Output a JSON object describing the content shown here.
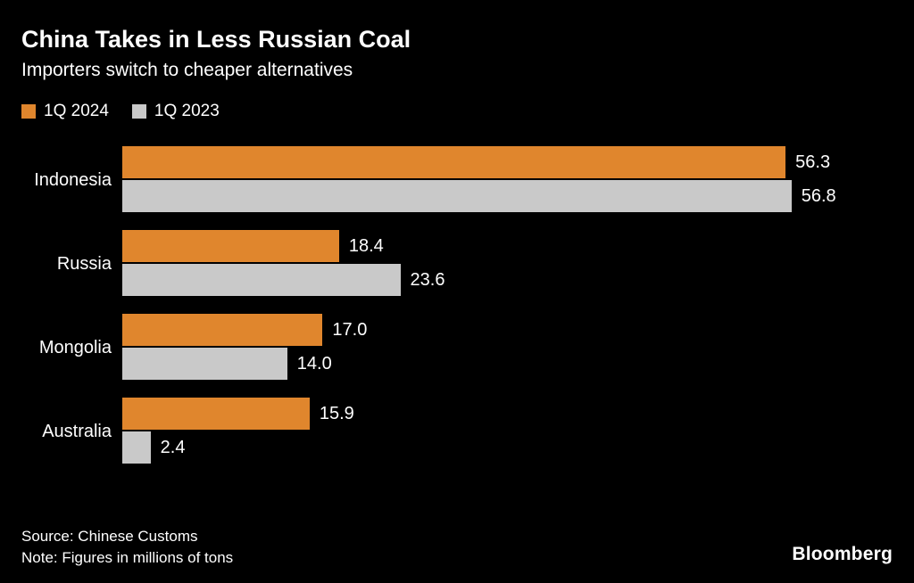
{
  "header": {
    "title": "China Takes in Less Russian Coal",
    "subtitle": "Importers switch to cheaper alternatives"
  },
  "legend": {
    "items": [
      {
        "label": "1Q 2024",
        "color": "#E0862D"
      },
      {
        "label": "1Q 2023",
        "color": "#C9C9C9"
      }
    ]
  },
  "chart_data": {
    "type": "bar",
    "orientation": "horizontal",
    "title": "China Takes in Less Russian Coal",
    "subtitle": "Importers switch to cheaper alternatives",
    "categories": [
      "Indonesia",
      "Russia",
      "Mongolia",
      "Australia"
    ],
    "series": [
      {
        "name": "1Q 2024",
        "color": "#E0862D",
        "values": [
          56.3,
          18.4,
          17.0,
          15.9
        ]
      },
      {
        "name": "1Q 2023",
        "color": "#C9C9C9",
        "values": [
          56.8,
          23.6,
          14.0,
          2.4
        ]
      }
    ],
    "xlim": [
      0,
      56.8
    ],
    "value_labels": true,
    "grid": false,
    "legend_position": "top-left",
    "unit": "millions of tons"
  },
  "footer": {
    "source": "Source: Chinese Customs",
    "note": "Note: Figures in millions of tons",
    "brand": "Bloomberg"
  }
}
